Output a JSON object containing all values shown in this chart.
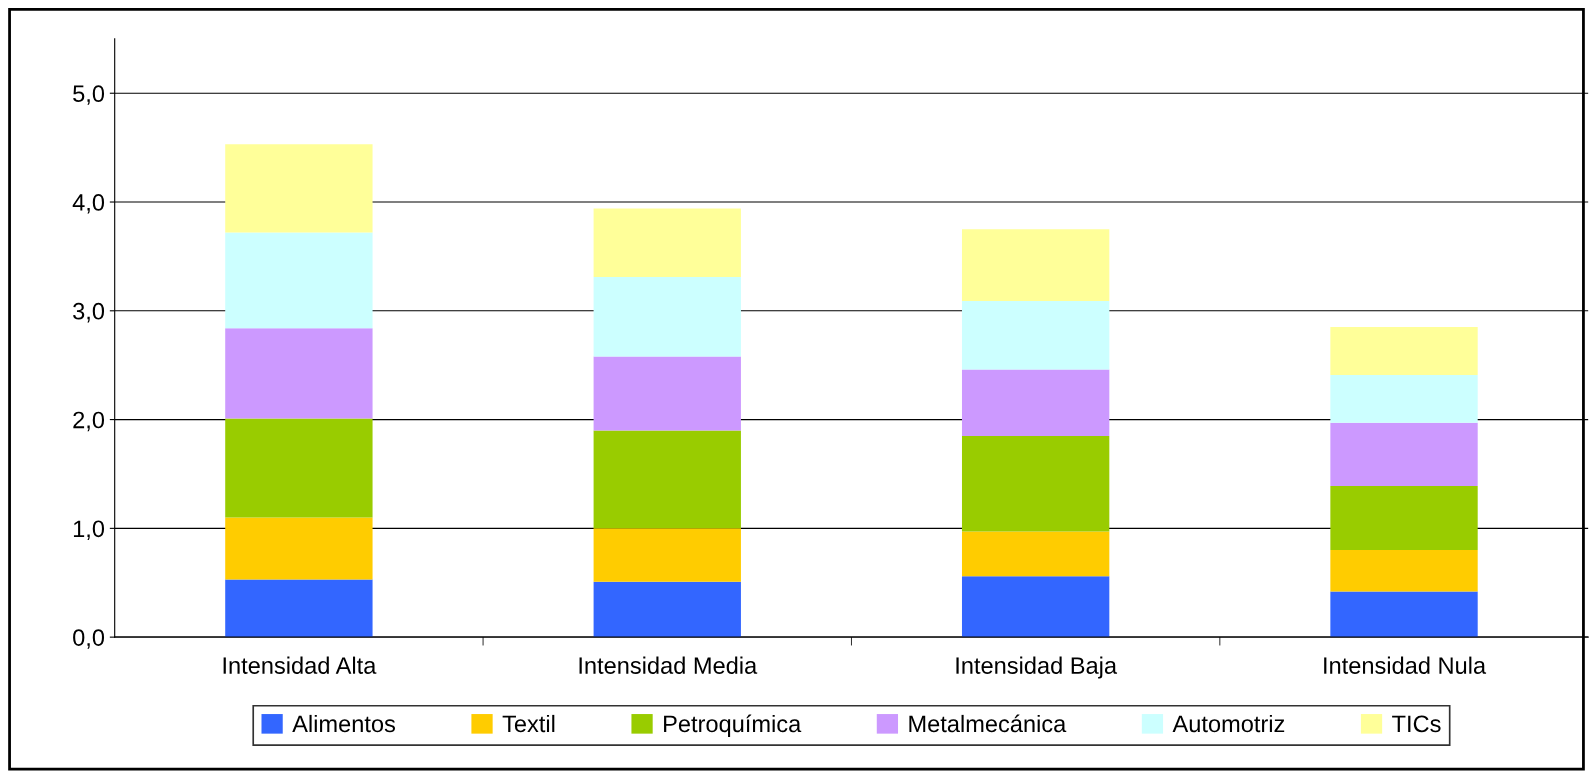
{
  "chart_data": {
    "type": "bar",
    "stacked": true,
    "categories": [
      "Intensidad Alta",
      "Intensidad Media",
      "Intensidad Baja",
      "Intensidad Nula"
    ],
    "series": [
      {
        "name": "Alimentos",
        "color": "#3366ff",
        "values": [
          0.53,
          0.51,
          0.56,
          0.42
        ]
      },
      {
        "name": "Textil",
        "color": "#ffcc00",
        "values": [
          0.57,
          0.49,
          0.41,
          0.38
        ]
      },
      {
        "name": "Petroquímica",
        "color": "#99cc00",
        "values": [
          0.91,
          0.9,
          0.88,
          0.59
        ]
      },
      {
        "name": "Metalmecánica",
        "color": "#cc99ff",
        "values": [
          0.83,
          0.68,
          0.61,
          0.58
        ]
      },
      {
        "name": "Automotriz",
        "color": "#ccffff",
        "values": [
          0.88,
          0.73,
          0.63,
          0.44
        ]
      },
      {
        "name": "TICs",
        "color": "#ffff99",
        "values": [
          0.81,
          0.63,
          0.66,
          0.44
        ]
      }
    ],
    "ylim": [
      0,
      5.5
    ],
    "yticks": [
      {
        "value": 0,
        "label": "0,0"
      },
      {
        "value": 1,
        "label": "1,0"
      },
      {
        "value": 2,
        "label": "2,0"
      },
      {
        "value": 3,
        "label": "3,0"
      },
      {
        "value": 4,
        "label": "4,0"
      },
      {
        "value": 5,
        "label": "5,0"
      }
    ],
    "grid": "y",
    "legend": "bottom"
  }
}
